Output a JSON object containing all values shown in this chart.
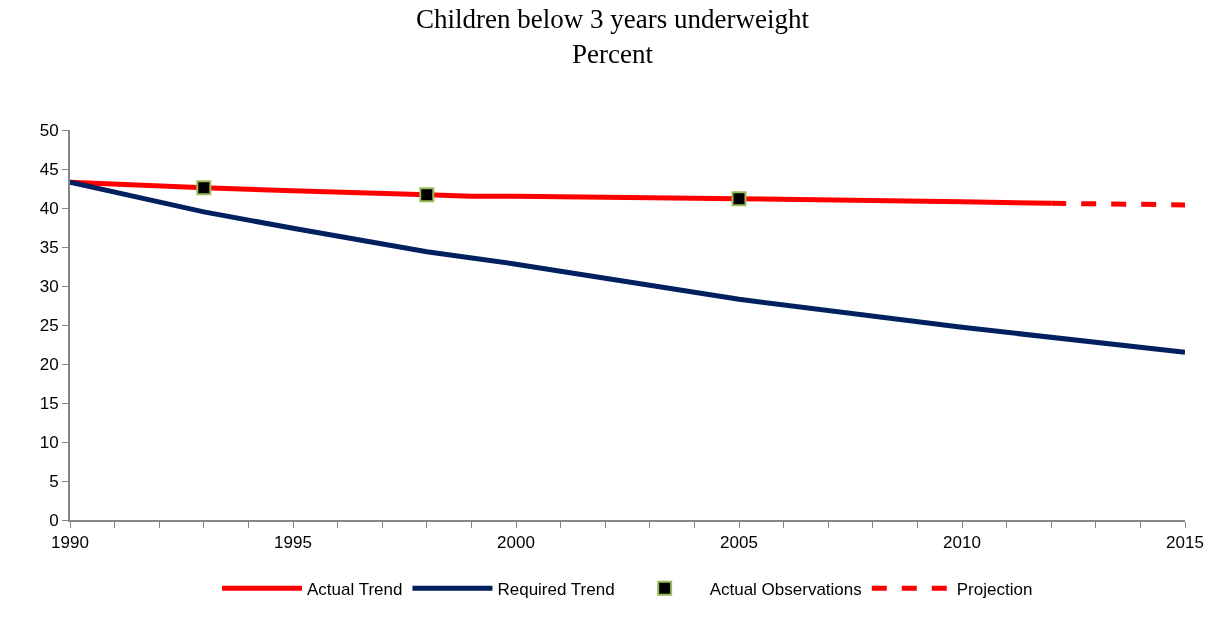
{
  "chart_data": {
    "type": "line",
    "title": "Children below 3 years underweight",
    "subtitle": "Percent",
    "xlim": [
      1990,
      2015
    ],
    "xticks": [
      1990,
      {
        "value": 1991,
        "label": null
      },
      {
        "value": 1992,
        "label": null
      },
      {
        "value": 1993,
        "label": null
      },
      {
        "value": 1994,
        "label": null
      },
      1995,
      {
        "value": 1996,
        "label": null
      },
      {
        "value": 1997,
        "label": null
      },
      {
        "value": 1998,
        "label": null
      },
      {
        "value": 1999,
        "label": null
      },
      2000,
      {
        "value": 2001,
        "label": null
      },
      {
        "value": 2002,
        "label": null
      },
      {
        "value": 2003,
        "label": null
      },
      {
        "value": 2004,
        "label": null
      },
      2005,
      {
        "value": 2006,
        "label": null
      },
      {
        "value": 2007,
        "label": null
      },
      {
        "value": 2008,
        "label": null
      },
      {
        "value": 2009,
        "label": null
      },
      2010,
      {
        "value": 2011,
        "label": null
      },
      {
        "value": 2012,
        "label": null
      },
      {
        "value": 2013,
        "label": null
      },
      {
        "value": 2014,
        "label": null
      },
      2015
    ],
    "ylim": [
      0,
      50
    ],
    "yticks": [
      0,
      5,
      10,
      15,
      20,
      25,
      30,
      35,
      40,
      45,
      50
    ],
    "legend": "bottom",
    "series": [
      {
        "name": "Actual Trend",
        "color": "#ff0000",
        "x": [
          1990,
          1993,
          1995,
          1998,
          1999,
          2000,
          2005,
          2010,
          2012
        ],
        "values": [
          43.3,
          42.6,
          42.2,
          41.7,
          41.5,
          41.5,
          41.2,
          40.8,
          40.6
        ],
        "marker": "none",
        "line_style": "solid"
      },
      {
        "name": "Required Trend",
        "color": "#002060",
        "x": [
          1990,
          1993,
          1995,
          1998,
          2000,
          2005,
          2010,
          2015
        ],
        "values": [
          43.3,
          39.5,
          37.4,
          34.4,
          32.8,
          28.3,
          24.7,
          21.5
        ],
        "marker": "none",
        "line_style": "solid"
      },
      {
        "name": "Actual Observations",
        "type": "scatter",
        "color": "#000000",
        "x": [
          1993,
          1998,
          2005
        ],
        "values": [
          42.6,
          41.7,
          41.2
        ],
        "marker": "square"
      },
      {
        "name": "Projection",
        "color": "#ff0000",
        "x": [
          2012,
          2015
        ],
        "values": [
          40.6,
          40.4
        ],
        "marker": "none",
        "line_style": "dashed"
      }
    ]
  }
}
